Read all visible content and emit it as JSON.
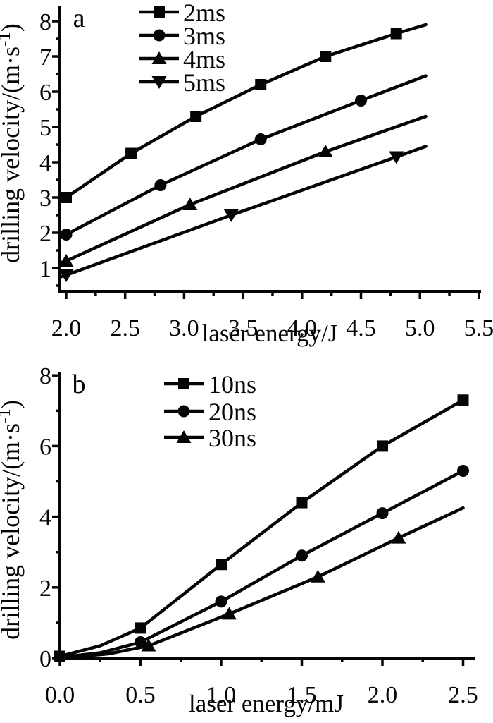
{
  "figure": {
    "background": "#ffffff",
    "ink": "#050505",
    "description": "Two stacked line charts of drilling velocity versus laser energy"
  },
  "chart_data": [
    {
      "id": "a",
      "type": "line",
      "panel_label": "a",
      "x_axis": {
        "label": "laser energy/J",
        "min": 1.95,
        "max": 5.52,
        "major_ticks": [
          {
            "v": 2.0,
            "label": "2.0"
          },
          {
            "v": 2.5,
            "label": "2.5"
          },
          {
            "v": 3.0,
            "label": "3.0"
          },
          {
            "v": 3.5,
            "label": "3.5"
          },
          {
            "v": 4.0,
            "label": "4.0"
          },
          {
            "v": 4.5,
            "label": "4.5"
          },
          {
            "v": 5.0,
            "label": "5.0"
          },
          {
            "v": 5.5,
            "label": "5.5"
          }
        ],
        "minor_ticks": [
          2.25,
          2.75,
          3.25,
          3.75,
          4.25,
          4.75,
          5.25
        ]
      },
      "y_axis": {
        "label": "drilling velocity/(m·s⁻¹)",
        "label_base": "drilling velocity/(m·s",
        "label_sup": "-1",
        "label_end": ")",
        "min": 0.35,
        "max": 8.45,
        "major_ticks": [
          {
            "v": 1,
            "label": "1"
          },
          {
            "v": 2,
            "label": "2"
          },
          {
            "v": 3,
            "label": "3"
          },
          {
            "v": 4,
            "label": "4"
          },
          {
            "v": 5,
            "label": "5"
          },
          {
            "v": 6,
            "label": "6"
          },
          {
            "v": 7,
            "label": "7"
          },
          {
            "v": 8,
            "label": "8"
          }
        ],
        "minor_ticks": [
          0.5,
          1.5,
          2.5,
          3.5,
          4.5,
          5.5,
          6.5,
          7.5
        ]
      },
      "legend_position": "top-center",
      "grid": false,
      "series": [
        {
          "name": "2ms",
          "marker": "square",
          "line": [
            [
              1.95,
              2.95
            ],
            [
              2.0,
              3.0
            ],
            [
              2.55,
              4.25
            ],
            [
              3.1,
              5.3
            ],
            [
              3.65,
              6.2
            ],
            [
              4.2,
              7.0
            ],
            [
              4.8,
              7.65
            ],
            [
              5.05,
              7.9
            ]
          ],
          "marker_points": [
            [
              2.0,
              3.0
            ],
            [
              2.55,
              4.25
            ],
            [
              3.1,
              5.3
            ],
            [
              3.65,
              6.2
            ],
            [
              4.2,
              7.0
            ],
            [
              4.8,
              7.65
            ]
          ]
        },
        {
          "name": "3ms",
          "marker": "circle",
          "line": [
            [
              1.95,
              1.85
            ],
            [
              2.0,
              1.95
            ],
            [
              2.8,
              3.35
            ],
            [
              3.65,
              4.65
            ],
            [
              4.5,
              5.75
            ],
            [
              5.05,
              6.45
            ]
          ],
          "marker_points": [
            [
              2.0,
              1.95
            ],
            [
              2.8,
              3.35
            ],
            [
              3.65,
              4.65
            ],
            [
              4.5,
              5.75
            ]
          ]
        },
        {
          "name": "4ms",
          "marker": "triangle-up",
          "line": [
            [
              1.95,
              1.15
            ],
            [
              2.0,
              1.2
            ],
            [
              3.05,
              2.8
            ],
            [
              4.2,
              4.3
            ],
            [
              5.05,
              5.3
            ]
          ],
          "marker_points": [
            [
              2.0,
              1.2
            ],
            [
              3.05,
              2.8
            ],
            [
              4.2,
              4.3
            ]
          ]
        },
        {
          "name": "5ms",
          "marker": "triangle-down",
          "line": [
            [
              1.95,
              0.75
            ],
            [
              2.0,
              0.8
            ],
            [
              3.4,
              2.5
            ],
            [
              4.8,
              4.15
            ],
            [
              5.05,
              4.45
            ]
          ],
          "marker_points": [
            [
              2.0,
              0.8
            ],
            [
              3.4,
              2.5
            ],
            [
              4.8,
              4.15
            ]
          ]
        }
      ]
    },
    {
      "id": "b",
      "type": "line",
      "panel_label": "b",
      "x_axis": {
        "label": "laser energy/mJ",
        "min": 0.0,
        "max": 2.57,
        "major_ticks": [
          {
            "v": 0.0,
            "label": "0.0"
          },
          {
            "v": 0.5,
            "label": "0.5"
          },
          {
            "v": 1.0,
            "label": "1.0"
          },
          {
            "v": 1.5,
            "label": "1.5"
          },
          {
            "v": 2.0,
            "label": "2.0"
          },
          {
            "v": 2.5,
            "label": "2.5"
          }
        ],
        "minor_ticks": [
          0.25,
          0.75,
          1.25,
          1.75,
          2.25
        ]
      },
      "y_axis": {
        "label": "drilling velocity/(m·s⁻¹)",
        "label_base": "drilling velocity/(m·s",
        "label_sup": "-1",
        "label_end": ")",
        "min": 0,
        "max": 8.1,
        "major_ticks": [
          {
            "v": 0,
            "label": "0"
          },
          {
            "v": 2,
            "label": "2"
          },
          {
            "v": 4,
            "label": "4"
          },
          {
            "v": 6,
            "label": "6"
          },
          {
            "v": 8,
            "label": "8"
          }
        ],
        "minor_ticks": [
          1,
          3,
          5,
          7
        ]
      },
      "legend_position": "top-center",
      "grid": false,
      "series": [
        {
          "name": "10ns",
          "marker": "square",
          "line": [
            [
              0.0,
              0.05
            ],
            [
              0.25,
              0.35
            ],
            [
              0.5,
              0.85
            ],
            [
              1.0,
              2.65
            ],
            [
              1.5,
              4.4
            ],
            [
              2.0,
              6.0
            ],
            [
              2.5,
              7.3
            ]
          ],
          "marker_points": [
            [
              0.0,
              0.05
            ],
            [
              0.5,
              0.85
            ],
            [
              1.0,
              2.65
            ],
            [
              1.5,
              4.4
            ],
            [
              2.0,
              6.0
            ],
            [
              2.5,
              7.3
            ]
          ]
        },
        {
          "name": "20ns",
          "marker": "circle",
          "line": [
            [
              0.0,
              0.02
            ],
            [
              0.25,
              0.15
            ],
            [
              0.5,
              0.45
            ],
            [
              1.0,
              1.6
            ],
            [
              1.5,
              2.9
            ],
            [
              2.0,
              4.1
            ],
            [
              2.5,
              5.3
            ]
          ],
          "marker_points": [
            [
              0.5,
              0.45
            ],
            [
              1.0,
              1.6
            ],
            [
              1.5,
              2.9
            ],
            [
              2.0,
              4.1
            ],
            [
              2.5,
              5.3
            ]
          ]
        },
        {
          "name": "30ns",
          "marker": "triangle-up",
          "line": [
            [
              0.0,
              0.0
            ],
            [
              0.3,
              0.12
            ],
            [
              0.55,
              0.35
            ],
            [
              1.05,
              1.25
            ],
            [
              1.6,
              2.3
            ],
            [
              2.1,
              3.4
            ],
            [
              2.5,
              4.25
            ]
          ],
          "marker_points": [
            [
              0.55,
              0.35
            ],
            [
              1.05,
              1.25
            ],
            [
              1.6,
              2.3
            ],
            [
              2.1,
              3.4
            ]
          ]
        }
      ]
    }
  ]
}
